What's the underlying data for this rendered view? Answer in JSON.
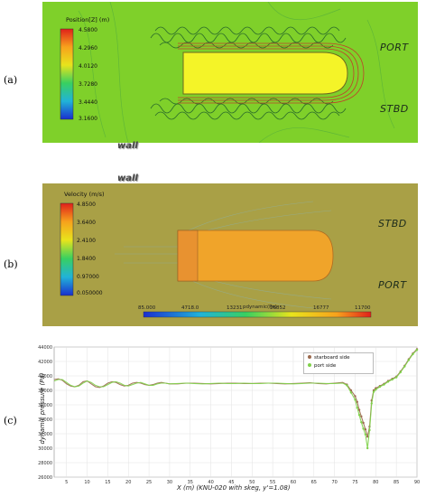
{
  "labels": {
    "a": "(a)",
    "b": "(b)",
    "c": "(c)"
  },
  "panel_a": {
    "colorbar_title": "Position[Z] (m)",
    "colorbar_values": [
      "4.5800",
      "4.2960",
      "4.0120",
      "3.7280",
      "3.4440",
      "3.1600"
    ],
    "port": "PORT",
    "stbd": "STBD"
  },
  "wall_labels": [
    "wall",
    "wall"
  ],
  "panel_b": {
    "colorbar_title": "Velocity (m/s)",
    "colorbar_values": [
      "4.8500",
      "3.6400",
      "2.4100",
      "1.8400",
      "0.97000",
      "0.050000"
    ],
    "stbd": "STBD",
    "port": "PORT",
    "pd_title": "pdynamic(Pa)",
    "pd_values": [
      "85.000",
      "4718.0",
      "13231",
      "25852",
      "16777",
      "11700"
    ]
  },
  "chart_data": {
    "type": "scatter",
    "ylabel": "dynamic pressure (Pa)",
    "xlabel": "X (m)   (KNU-020 with skeg,  y'=1.08)",
    "xlim": [
      2,
      90
    ],
    "ylim": [
      26000,
      44000
    ],
    "xticks": [
      5,
      10,
      15,
      20,
      25,
      30,
      35,
      40,
      45,
      50,
      55,
      60,
      65,
      70,
      75,
      80,
      85,
      90
    ],
    "yticks": [
      26000,
      28000,
      30000,
      32000,
      34000,
      36000,
      38000,
      40000,
      42000,
      44000
    ],
    "legend_position": "top-right",
    "series": [
      {
        "name": "starboard side",
        "color": "#9b6a4e",
        "x": [
          2,
          3,
          4,
          5,
          6,
          7,
          8,
          9,
          10,
          11,
          12,
          13,
          14,
          15,
          16,
          17,
          18,
          19,
          20,
          21,
          22,
          23,
          24,
          25,
          26,
          27,
          28,
          29,
          30,
          32,
          34,
          36,
          38,
          40,
          42,
          44,
          46,
          48,
          50,
          52,
          54,
          56,
          58,
          60,
          62,
          64,
          66,
          68,
          70,
          72,
          73,
          74,
          75,
          75.5,
          76,
          76.5,
          77,
          77.5,
          78,
          78.5,
          79,
          79.5,
          80,
          81,
          82,
          83,
          84,
          85,
          86,
          87,
          88,
          89,
          90
        ],
        "y": [
          39500,
          39600,
          39400,
          38900,
          38600,
          38500,
          38700,
          39200,
          39300,
          38900,
          38500,
          38400,
          38600,
          39000,
          39200,
          39100,
          38800,
          38600,
          38700,
          39000,
          39100,
          39000,
          38800,
          38700,
          38800,
          39000,
          39100,
          39000,
          38900,
          38900,
          39000,
          39000,
          38950,
          38900,
          38950,
          39000,
          39000,
          38950,
          38950,
          39000,
          39000,
          38950,
          38900,
          38950,
          39000,
          39050,
          38950,
          38900,
          39000,
          39100,
          38800,
          38000,
          37200,
          36400,
          35300,
          34400,
          33500,
          32600,
          31600,
          33000,
          36600,
          38000,
          38300,
          38600,
          38900,
          39300,
          39600,
          39900,
          40600,
          41400,
          42300,
          43100,
          43700
        ]
      },
      {
        "name": "port side",
        "color": "#7fd14a",
        "x": [
          2,
          3,
          4,
          5,
          6,
          7,
          8,
          9,
          10,
          11,
          12,
          13,
          14,
          15,
          16,
          17,
          18,
          19,
          20,
          21,
          22,
          23,
          24,
          25,
          26,
          27,
          28,
          29,
          30,
          32,
          34,
          36,
          38,
          40,
          42,
          44,
          46,
          48,
          50,
          52,
          54,
          56,
          58,
          60,
          62,
          64,
          66,
          68,
          70,
          72,
          73,
          74,
          75,
          75.5,
          76,
          76.5,
          77,
          77.5,
          78,
          78.5,
          79,
          79.5,
          80,
          81,
          82,
          83,
          84,
          85,
          86,
          87,
          88,
          89,
          90
        ],
        "y": [
          39300,
          39500,
          39500,
          39100,
          38700,
          38500,
          38600,
          39000,
          39300,
          39100,
          38700,
          38500,
          38500,
          38800,
          39100,
          39200,
          39000,
          38700,
          38600,
          38800,
          39000,
          39100,
          38900,
          38700,
          38700,
          38900,
          39000,
          39000,
          38900,
          38950,
          39000,
          38950,
          38900,
          38950,
          39000,
          38950,
          38950,
          39000,
          38950,
          38950,
          39000,
          39000,
          38950,
          38900,
          38950,
          39000,
          39000,
          38950,
          38950,
          39000,
          38700,
          37700,
          36700,
          35600,
          34600,
          33600,
          32700,
          31900,
          30000,
          32500,
          36200,
          37800,
          38100,
          38500,
          38800,
          39200,
          39500,
          39800,
          40500,
          41300,
          42200,
          43000,
          43600
        ]
      }
    ]
  }
}
